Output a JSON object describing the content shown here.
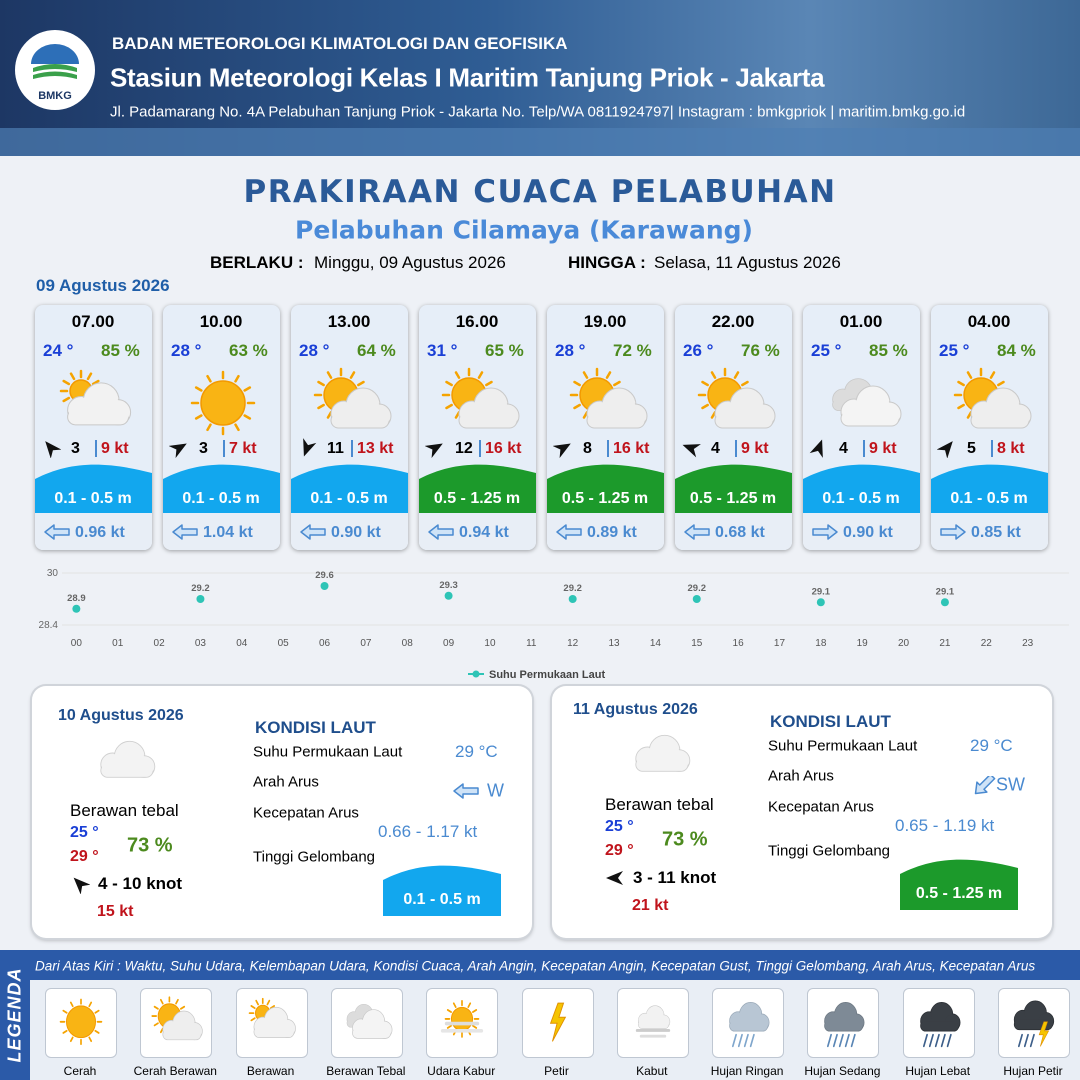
{
  "header": {
    "logo": "BMKG",
    "agency": "BADAN METEOROLOGI KLIMATOLOGI DAN GEOFISIKA",
    "station": "Stasiun Meteorologi Kelas I Maritim Tanjung Priok - Jakarta",
    "address": "Jl. Padamarang No. 4A Pelabuhan Tanjung Priok - Jakarta No. Telp/WA 0811924797| Instagram : bmkgpriok | maritim.bmkg.go.id"
  },
  "title": "PRAKIRAAN CUACA PELABUHAN",
  "subtitle": "Pelabuhan Cilamaya (Karawang)",
  "validity": {
    "from_label": "BERLAKU :",
    "from": "Minggu, 09 Agustus 2026",
    "to_label": "HINGGA :",
    "to": "Selasa, 11 Agustus 2026"
  },
  "today": {
    "date": "09 Agustus 2026",
    "forecasts": [
      {
        "time": "07.00",
        "temperature": "24 °",
        "humidity": "85 %",
        "wind_speed": "3",
        "gust": "9 kt",
        "wave_height": "0.1 - 0.5 m",
        "current_speed": "0.96 kt"
      },
      {
        "time": "10.00",
        "temperature": "28 °",
        "humidity": "63 %",
        "wind_speed": "3",
        "gust": "7 kt",
        "wave_height": "0.1 - 0.5 m",
        "current_speed": "1.04 kt"
      },
      {
        "time": "13.00",
        "temperature": "28 °",
        "humidity": "64 %",
        "wind_speed": "11",
        "gust": "13 kt",
        "wave_height": "0.1 - 0.5 m",
        "current_speed": "0.90 kt"
      },
      {
        "time": "16.00",
        "temperature": "31 °",
        "humidity": "65 %",
        "wind_speed": "12",
        "gust": "16 kt",
        "wave_height": "0.5 - 1.25 m",
        "current_speed": "0.94 kt"
      },
      {
        "time": "19.00",
        "temperature": "28 °",
        "humidity": "72 %",
        "wind_speed": "8",
        "gust": "16 kt",
        "wave_height": "0.5 - 1.25 m",
        "current_speed": "0.89 kt"
      },
      {
        "time": "22.00",
        "temperature": "26 °",
        "humidity": "76 %",
        "wind_speed": "4",
        "gust": "9 kt",
        "wave_height": "0.5 - 1.25 m",
        "current_speed": "0.68 kt"
      },
      {
        "time": "01.00",
        "temperature": "25 °",
        "humidity": "85 %",
        "wind_speed": "4",
        "gust": "9 kt",
        "wave_height": "0.1 - 0.5 m",
        "current_speed": "0.90 kt"
      },
      {
        "time": "04.00",
        "temperature": "25 °",
        "humidity": "84 %",
        "wind_speed": "5",
        "gust": "8 kt",
        "wave_height": "0.1 - 0.5 m",
        "current_speed": "0.85 kt"
      }
    ]
  },
  "chart_data": {
    "type": "scatter",
    "x": [
      0,
      3,
      6,
      9,
      12,
      15,
      18,
      21
    ],
    "series": [
      {
        "name": "Suhu Permukaan Laut",
        "color": "#2ec4b6",
        "values": [
          28.9,
          29.2,
          29.6,
          29.3,
          29.2,
          29.2,
          29.1,
          29.1
        ]
      }
    ],
    "xlim": [
      -1,
      24
    ],
    "xticks": [
      {
        "value": 0,
        "label": "00"
      },
      {
        "value": 1,
        "label": "01"
      },
      {
        "value": 2,
        "label": "02"
      },
      {
        "value": 3,
        "label": "03"
      },
      {
        "value": 4,
        "label": "04"
      },
      {
        "value": 5,
        "label": "05"
      },
      {
        "value": 6,
        "label": "06"
      },
      {
        "value": 7,
        "label": "07"
      },
      {
        "value": 8,
        "label": "08"
      },
      {
        "value": 9,
        "label": "09"
      },
      10,
      11,
      12,
      13,
      14,
      15,
      16,
      17,
      18,
      19,
      20,
      21,
      22,
      23
    ],
    "ylim": [
      28.4,
      30
    ],
    "yticks": [
      28.4,
      30
    ],
    "grid": true,
    "legend": "bottom"
  },
  "outlook": [
    {
      "date": "10 Agustus 2026",
      "condition": "Berawan tebal",
      "temp_min": "25 °",
      "temp_max": "29 °",
      "humidity": "73 %",
      "wind": "4 - 10 knot",
      "gust": "15 kt",
      "sea_title": "KONDISI LAUT",
      "sst_label": "Suhu Permukaan Laut",
      "sst": "29 °C",
      "current_dir_label": "Arah Arus",
      "current_dir": "W",
      "current_speed_label": "Kecepatan Arus",
      "current_speed": "0.66 - 1.17 kt",
      "wave_label": "Tinggi Gelombang",
      "wave_height": "0.1 - 0.5 m"
    },
    {
      "date": "11 Agustus 2026",
      "condition": "Berawan tebal",
      "temp_min": "25 °",
      "temp_max": "29 °",
      "humidity": "73 %",
      "wind": "3 - 11 knot",
      "gust": "21 kt",
      "sea_title": "KONDISI LAUT",
      "sst_label": "Suhu Permukaan Laut",
      "sst": "29 °C",
      "current_dir_label": "Arah Arus",
      "current_dir": "SW",
      "current_speed_label": "Kecepatan Arus",
      "current_speed": "0.65 - 1.19 kt",
      "wave_label": "Tinggi Gelombang",
      "wave_height": "0.5 - 1.25 m"
    }
  ],
  "legend": {
    "title": "LEGENDA",
    "description": "Dari Atas Kiri : Waktu, Suhu Udara, Kelembapan Udara, Kondisi Cuaca, Arah Angin, Kecepatan Angin, Kecepatan Gust, Tinggi Gelombang, Arah Arus, Kecepatan Arus",
    "items": [
      "Cerah",
      "Cerah Berawan",
      "Berawan",
      "Berawan Tebal",
      "Udara Kabur",
      "Petir",
      "Kabut",
      "Hujan Ringan",
      "Hujan Sedang",
      "Hujan Lebat",
      "Hujan Petir"
    ]
  }
}
